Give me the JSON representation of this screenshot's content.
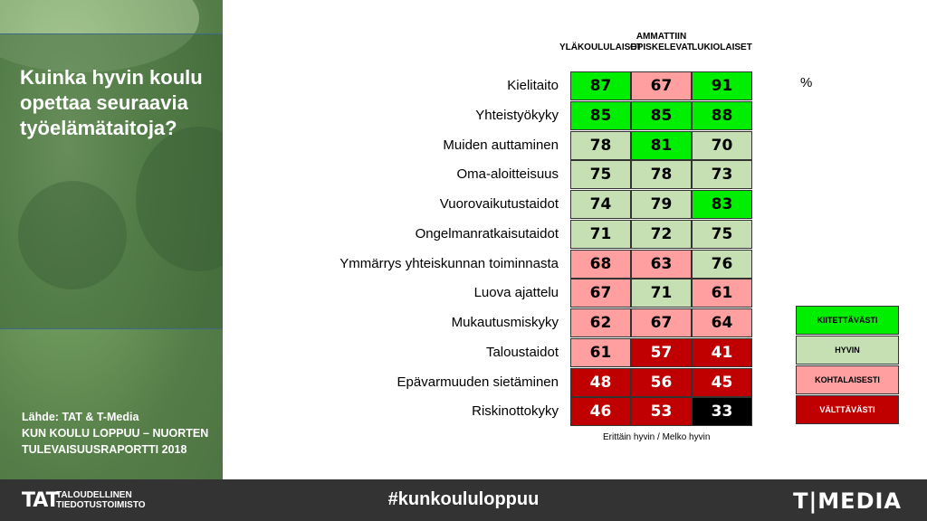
{
  "slide": {
    "title": "Kuinka hyvin koulu opettaa seuraavia työelämätaitoja?",
    "source_lines": [
      "Lähde: TAT & T-Media",
      "KUN KOULU LOPPUU – NUORTEN",
      "TULEVAISUUSRAPORTTI 2018"
    ]
  },
  "footer": {
    "tat_logo": "TAT",
    "tat_name_line1": "TALOUDELLINEN",
    "tat_name_line2": "TIEDOTUSTOIMISTO",
    "hashtag": "#kunkoululoppuu",
    "tmedia_logo": "T|MEDIA"
  },
  "colors": {
    "kiitettavasti": "#00ee00",
    "hyvin": "#c6e0b4",
    "kohtalaisesti": "#ff9f9f",
    "valttavasti": "#c00000",
    "black": "#000000"
  },
  "chart_data": {
    "type": "table",
    "title": "",
    "unit": "%",
    "categories": [
      "Kielitaito",
      "Yhteistyökyky",
      "Muiden auttaminen",
      "Oma-aloitteisuus",
      "Vuorovaikutustaidot",
      "Ongelmanratkaisutaidot",
      "Ymmärrys yhteiskunnan toiminnasta",
      "Luova ajattelu",
      "Mukautusmiskyky",
      "Taloustaidot",
      "Epävarmuuden sietäminen",
      "Riskinottokyky"
    ],
    "series": [
      {
        "name": "YLÄKOULULAISET",
        "values": [
          87,
          85,
          78,
          75,
          74,
          71,
          68,
          67,
          62,
          61,
          48,
          46
        ],
        "levels": [
          "kiitettavasti",
          "kiitettavasti",
          "hyvin",
          "hyvin",
          "hyvin",
          "hyvin",
          "kohtalaisesti",
          "kohtalaisesti",
          "kohtalaisesti",
          "kohtalaisesti",
          "valttavasti",
          "valttavasti"
        ]
      },
      {
        "name": "AMMATTIIN OPISKELEVAT",
        "values": [
          67,
          85,
          81,
          78,
          79,
          72,
          63,
          71,
          67,
          57,
          56,
          53
        ],
        "levels": [
          "kohtalaisesti",
          "kiitettavasti",
          "kiitettavasti",
          "hyvin",
          "hyvin",
          "hyvin",
          "kohtalaisesti",
          "hyvin",
          "kohtalaisesti",
          "valttavasti",
          "valttavasti",
          "valttavasti"
        ]
      },
      {
        "name": "LUKIOLAISET",
        "values": [
          91,
          88,
          70,
          73,
          83,
          75,
          76,
          61,
          64,
          41,
          45,
          33
        ],
        "levels": [
          "kiitettavasti",
          "kiitettavasti",
          "hyvin",
          "hyvin",
          "kiitettavasti",
          "hyvin",
          "hyvin",
          "kohtalaisesti",
          "kohtalaisesti",
          "valttavasti",
          "valttavasti",
          "black"
        ]
      }
    ],
    "legend": [
      {
        "key": "kiitettavasti",
        "label": "KIITETTÄVÄSTI"
      },
      {
        "key": "hyvin",
        "label": "HYVIN"
      },
      {
        "key": "kohtalaisesti",
        "label": "KOHTALAISESTI"
      },
      {
        "key": "valttavasti",
        "label": "VÄLTTÄVÄSTI"
      }
    ],
    "legend_position": "right",
    "footnote": "Erittäin hyvin / Melko hyvin"
  }
}
